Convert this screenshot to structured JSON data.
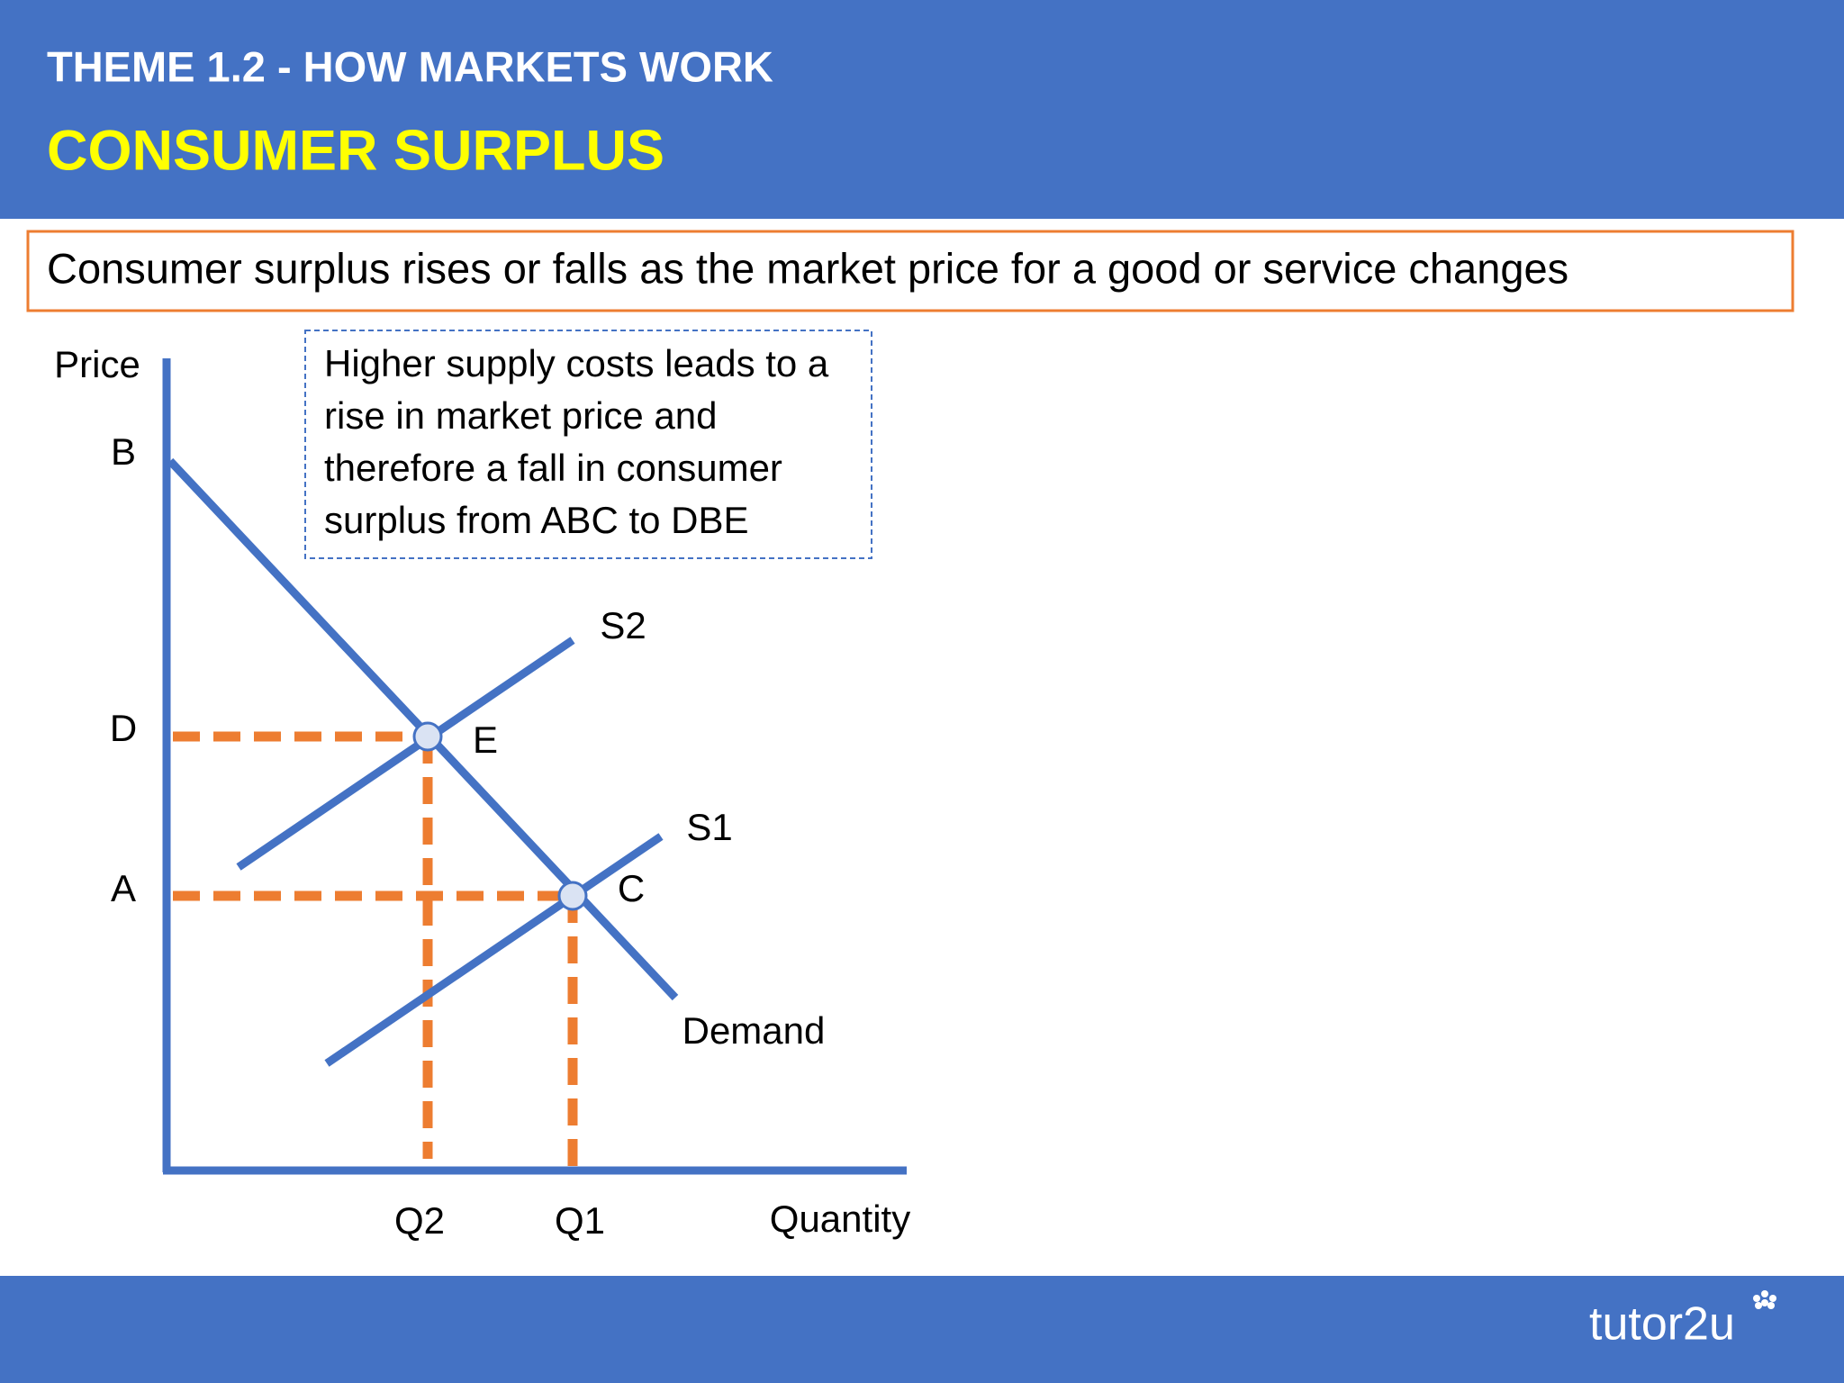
{
  "header": {
    "theme": "THEME 1.2 - HOW MARKETS WORK",
    "title": "CONSUMER SURPLUS"
  },
  "statement": "Consumer surplus rises or falls as the market price for a good or service changes",
  "note": {
    "lines": [
      "Higher supply costs leads to a",
      "rise in market price and",
      "therefore a fall in consumer",
      "surplus from ABC to DBE"
    ]
  },
  "diagram": {
    "y_axis_label": "Price",
    "x_axis_label": "Quantity",
    "price_labels": [
      "B",
      "D",
      "A"
    ],
    "quantity_labels": [
      "Q2",
      "Q1"
    ],
    "points": [
      "E",
      "C"
    ],
    "curves": [
      "S2",
      "S1",
      "Demand"
    ]
  },
  "footer": {
    "logo": "tutor2u"
  }
}
